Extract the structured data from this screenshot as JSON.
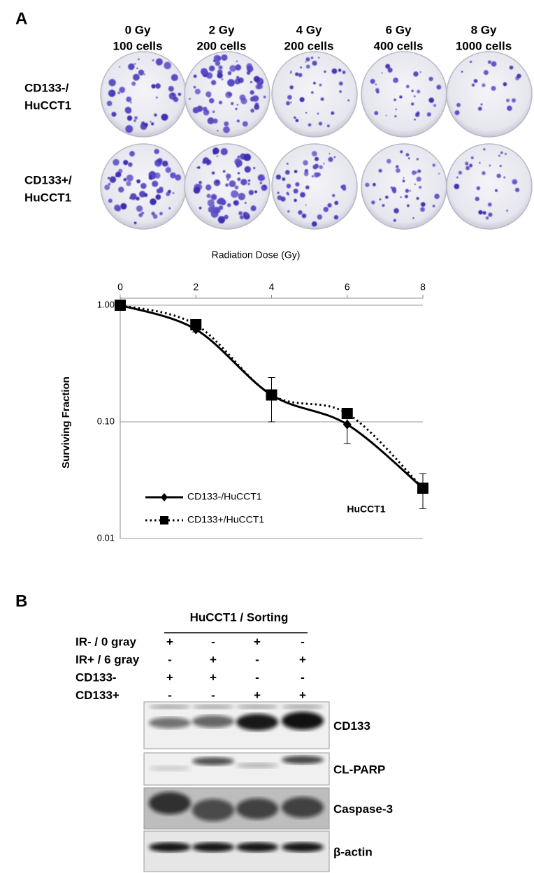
{
  "panel_a": {
    "label": "A",
    "columns": [
      [
        "0 Gy",
        "100 cells"
      ],
      [
        "2 Gy",
        "200 cells"
      ],
      [
        "4 Gy",
        "200 cells"
      ],
      [
        "6 Gy",
        "400 cells"
      ],
      [
        "8 Gy",
        "1000 cells"
      ]
    ],
    "rows": [
      [
        "CD133-/",
        "HuCCT1"
      ],
      [
        "CD133+/",
        "HuCCT1"
      ]
    ]
  },
  "chart_data": {
    "type": "line",
    "xlabel": "Radiation Dose (Gy)",
    "ylabel": "Surviving Fraction",
    "annotation": "HuCCT1",
    "x": [
      0,
      2,
      4,
      6,
      8
    ],
    "xlim": [
      0,
      8
    ],
    "xticks": [
      0,
      2,
      4,
      6,
      8
    ],
    "ylim": [
      0.01,
      1
    ],
    "log_y": true,
    "yticks": [
      0.01,
      {
        "value": 0.1,
        "label": "0.10"
      },
      {
        "value": 1,
        "label": "1.00"
      }
    ],
    "grid": true,
    "legend": "lower-left",
    "series": [
      {
        "name": "CD133-/HuCCT1",
        "color": "#000000",
        "line_style": "solid",
        "marker": "diamond",
        "values": [
          1.0,
          0.62,
          0.17,
          0.095,
          0.027
        ],
        "errors": [
          0.05,
          0.03,
          0.07,
          0.03,
          0.009
        ]
      },
      {
        "name": "CD133+/HuCCT1",
        "color": "#000000",
        "line_style": "dotted",
        "marker": "square",
        "values": [
          1.0,
          0.68,
          0.17,
          0.118,
          0.027
        ]
      }
    ]
  },
  "panel_b": {
    "label": "B",
    "header": "HuCCT1 / Sorting",
    "conditions": [
      {
        "label": "IR- / 0 gray",
        "marks": [
          "+",
          "-",
          "+",
          "-"
        ]
      },
      {
        "label": "IR+ / 6 gray",
        "marks": [
          "-",
          "+",
          "-",
          "+"
        ]
      },
      {
        "label": "CD133-",
        "marks": [
          "+",
          "+",
          "-",
          "-"
        ]
      },
      {
        "label": "CD133+",
        "marks": [
          "-",
          "-",
          "+",
          "+"
        ]
      }
    ],
    "blots": [
      "CD133",
      "CL-PARP",
      "Caspase-3",
      "β-actin"
    ]
  }
}
